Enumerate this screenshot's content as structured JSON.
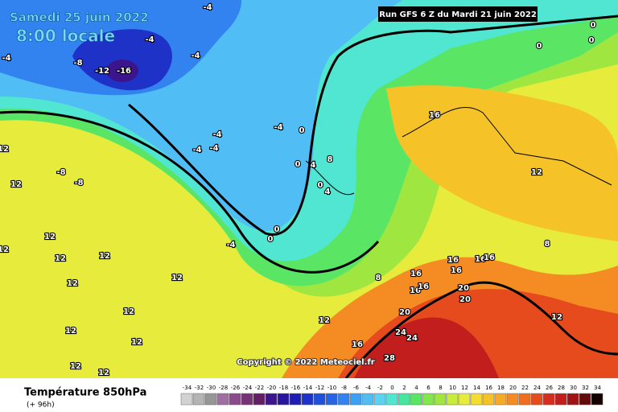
{
  "header": {
    "date": "Samedi 25 juin 2022",
    "time": "8:00 locale",
    "run": "Run GFS 6 Z du Mardi 21 juin 2022"
  },
  "copyright": "Copyright © 2022 Meteociel.fr",
  "footer": {
    "title": "Température 850hPa",
    "lead": "(+ 96h)"
  },
  "scale": {
    "values": [
      -34,
      -32,
      -30,
      -28,
      -26,
      -24,
      -22,
      -20,
      -18,
      -16,
      -14,
      -12,
      -10,
      -8,
      -6,
      -4,
      -2,
      0,
      2,
      4,
      6,
      8,
      10,
      12,
      14,
      16,
      18,
      20,
      22,
      24,
      26,
      28,
      30,
      32,
      34
    ],
    "colors": [
      "#d2d2d2",
      "#b4b4b4",
      "#969696",
      "#a06ea0",
      "#8c4b8c",
      "#783278",
      "#641e64",
      "#3c148c",
      "#2814a0",
      "#1e1eb4",
      "#1e32c8",
      "#1e50dc",
      "#2864e6",
      "#3282f0",
      "#3ca0f5",
      "#50bef5",
      "#5ad2f0",
      "#50e6d2",
      "#46e6a0",
      "#5ae664",
      "#82e650",
      "#a0e641",
      "#c8eb3c",
      "#e6eb3c",
      "#f5dc32",
      "#f5c328",
      "#f5aa28",
      "#f58c23",
      "#f06e1e",
      "#e64b1e",
      "#d72d1e",
      "#c31e1e",
      "#a01414",
      "#640a0a",
      "#140000"
    ]
  },
  "contour_labels": [
    -4,
    -4,
    -4,
    -8,
    -12,
    -16,
    -4,
    -4,
    -4,
    -4,
    -4,
    0,
    0,
    4,
    8,
    0,
    4,
    0,
    0,
    -4,
    16,
    12,
    8,
    16,
    16,
    16,
    16,
    16,
    16,
    16,
    20,
    20,
    20,
    24,
    24,
    28,
    16,
    12,
    8,
    12,
    0,
    0,
    0,
    -8,
    -8,
    12,
    12,
    12,
    12,
    12,
    12,
    12,
    12,
    12,
    12,
    12,
    12,
    12
  ]
}
